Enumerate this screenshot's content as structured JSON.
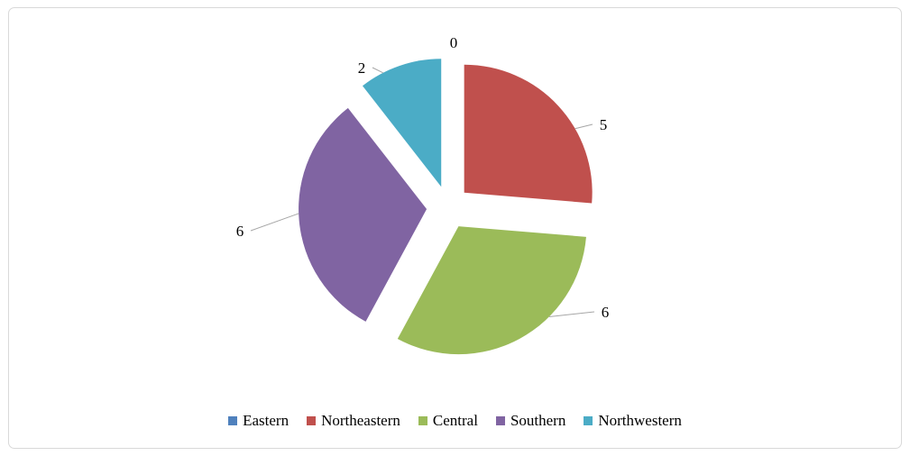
{
  "chart": {
    "background": "#ffffff",
    "border_color": "#d9d9d9",
    "leader_line_color": "#a6a6a6",
    "label_color": "#000000"
  },
  "chart_data": {
    "type": "pie",
    "title": "",
    "categories": [
      "Eastern",
      "Northeastern",
      "Central",
      "Southern",
      "Northwestern"
    ],
    "values": [
      0,
      5,
      6,
      6,
      2
    ],
    "data_labels": [
      "0",
      "5",
      "6",
      "6",
      "2"
    ],
    "colors": [
      "#4f81bd",
      "#c0504d",
      "#9bbb59",
      "#8064a2",
      "#4bacc6"
    ],
    "total": 19,
    "start_angle_deg": 0,
    "direction": "clockwise",
    "exploded": true,
    "legend_position": "bottom"
  },
  "legend": {
    "items": [
      {
        "label": "Eastern",
        "color": "#4f81bd"
      },
      {
        "label": "Northeastern",
        "color": "#c0504d"
      },
      {
        "label": "Central",
        "color": "#9bbb59"
      },
      {
        "label": "Southern",
        "color": "#8064a2"
      },
      {
        "label": "Northwestern",
        "color": "#4bacc6"
      }
    ]
  }
}
